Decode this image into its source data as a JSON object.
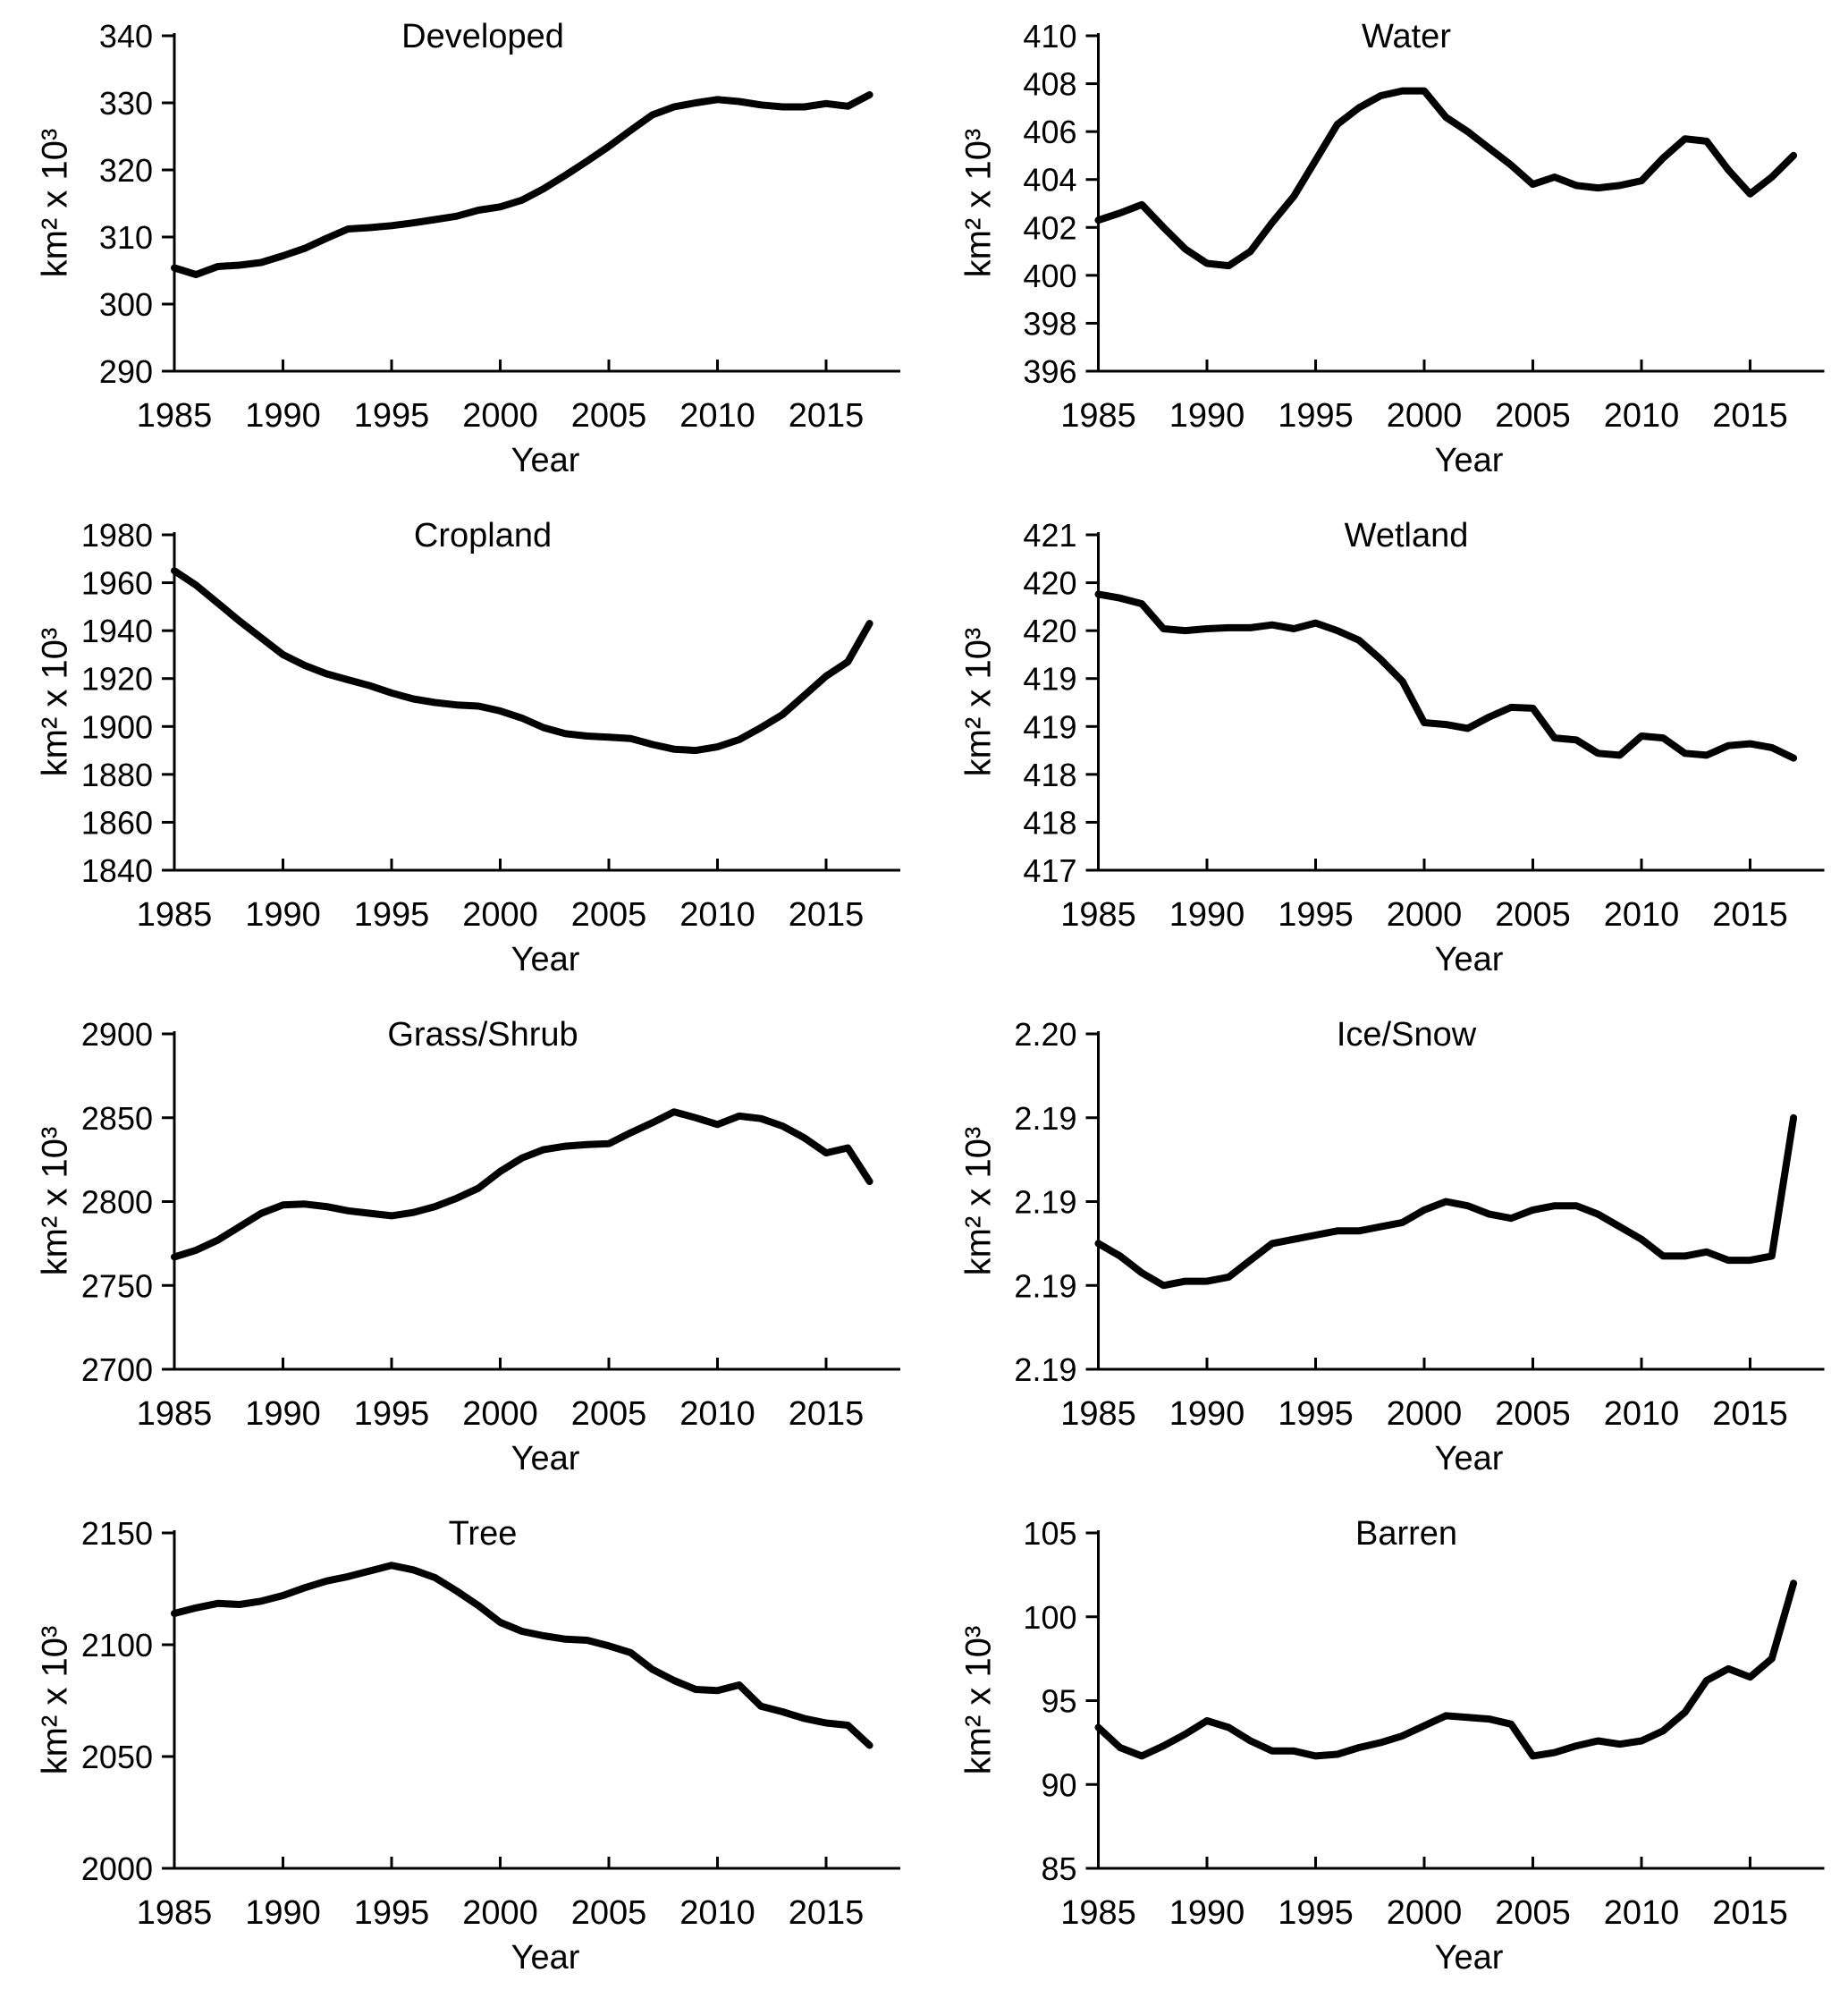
{
  "figure": {
    "background": "#ffffff",
    "axis_color": "#000000",
    "line_color": "#000000",
    "font_color": "#000000"
  },
  "chart_data": [
    {
      "type": "line",
      "title": "Developed",
      "xlabel": "Year",
      "ylabel": "km² x 10³",
      "years": [
        1985,
        1986,
        1987,
        1988,
        1989,
        1990,
        1991,
        1992,
        1993,
        1994,
        1995,
        1996,
        1997,
        1998,
        1999,
        2000,
        2001,
        2002,
        2003,
        2004,
        2005,
        2006,
        2007,
        2008,
        2009,
        2010,
        2011,
        2012,
        2013,
        2014,
        2015,
        2016,
        2017
      ],
      "values": [
        305.4,
        304.4,
        305.6,
        305.8,
        306.2,
        307.2,
        308.3,
        309.8,
        311.2,
        311.4,
        311.7,
        312.1,
        312.6,
        313.1,
        314.0,
        314.5,
        315.5,
        317.2,
        319.2,
        321.3,
        323.5,
        325.9,
        328.2,
        329.4,
        330.0,
        330.5,
        330.2,
        329.7,
        329.4,
        329.4,
        329.9,
        329.5,
        331.2
      ],
      "ylim": [
        290,
        340
      ],
      "yticks": [
        290,
        300,
        310,
        320,
        330,
        340
      ],
      "ytick_labels": [
        "290",
        "300",
        "310",
        "320",
        "330",
        "340"
      ],
      "xticks": [
        1985,
        1990,
        1995,
        2000,
        2005,
        2010,
        2015
      ],
      "xtick_marks": [
        1990,
        1995,
        2000,
        2005,
        2010,
        2015
      ],
      "grid": false,
      "legend": "none"
    },
    {
      "type": "line",
      "title": "Water",
      "xlabel": "Year",
      "ylabel": "km² x 10³",
      "years": [
        1985,
        1986,
        1987,
        1988,
        1989,
        1990,
        1991,
        1992,
        1993,
        1994,
        1995,
        1996,
        1997,
        1998,
        1999,
        2000,
        2001,
        2002,
        2003,
        2004,
        2005,
        2006,
        2007,
        2008,
        2009,
        2010,
        2011,
        2012,
        2013,
        2014,
        2015,
        2016,
        2017
      ],
      "values": [
        402.3,
        402.6,
        402.95,
        402.0,
        401.1,
        400.5,
        400.4,
        401.0,
        402.2,
        403.3,
        404.8,
        406.3,
        407.0,
        407.5,
        407.7,
        407.7,
        406.6,
        406.0,
        405.3,
        404.6,
        403.8,
        404.1,
        403.75,
        403.65,
        403.75,
        403.95,
        404.9,
        405.7,
        405.6,
        404.4,
        403.4,
        404.1,
        405.0
      ],
      "ylim": [
        396,
        410
      ],
      "yticks": [
        396,
        398,
        400,
        402,
        404,
        406,
        408,
        410
      ],
      "ytick_labels": [
        "396",
        "398",
        "400",
        "402",
        "404",
        "406",
        "408",
        "410"
      ],
      "xticks": [
        1985,
        1990,
        1995,
        2000,
        2005,
        2010,
        2015
      ],
      "xtick_marks": [
        1990,
        1995,
        2000,
        2005,
        2010,
        2015
      ],
      "grid": false,
      "legend": "none"
    },
    {
      "type": "line",
      "title": "Cropland",
      "xlabel": "Year",
      "ylabel": "km² x 10³",
      "years": [
        1985,
        1986,
        1987,
        1988,
        1989,
        1990,
        1991,
        1992,
        1993,
        1994,
        1995,
        1996,
        1997,
        1998,
        1999,
        2000,
        2001,
        2002,
        2003,
        2004,
        2005,
        2006,
        2007,
        2008,
        2009,
        2010,
        2011,
        2012,
        2013,
        2014,
        2015,
        2016,
        2017
      ],
      "values": [
        1965,
        1959,
        1951.5,
        1944,
        1937,
        1930,
        1925.5,
        1922,
        1919.5,
        1917,
        1914,
        1911.5,
        1910,
        1909,
        1908.5,
        1906.5,
        1903.5,
        1899.5,
        1897,
        1896,
        1895.5,
        1895,
        1892.5,
        1890.5,
        1890,
        1891.5,
        1894.5,
        1899.5,
        1905,
        1913,
        1921,
        1927,
        1943
      ],
      "ylim": [
        1840,
        1980
      ],
      "yticks": [
        1840,
        1860,
        1880,
        1900,
        1920,
        1940,
        1960,
        1980
      ],
      "ytick_labels": [
        "1840",
        "1860",
        "1880",
        "1900",
        "1920",
        "1940",
        "1960",
        "1980"
      ],
      "xticks": [
        1985,
        1990,
        1995,
        2000,
        2005,
        2010,
        2015
      ],
      "xtick_marks": [
        1990,
        1995,
        2000,
        2005,
        2010,
        2015
      ],
      "grid": false,
      "legend": "none"
    },
    {
      "type": "line",
      "title": "Wetland",
      "xlabel": "Year",
      "ylabel": "km² x 10³",
      "years": [
        1985,
        1986,
        1987,
        1988,
        1989,
        1990,
        1991,
        1992,
        1993,
        1994,
        1995,
        1996,
        1997,
        1998,
        1999,
        2000,
        2001,
        2002,
        2003,
        2004,
        2005,
        2006,
        2007,
        2008,
        2009,
        2010,
        2011,
        2012,
        2013,
        2014,
        2015,
        2016,
        2017
      ],
      "values": [
        419.88,
        419.84,
        419.78,
        419.52,
        419.5,
        419.52,
        419.53,
        419.53,
        419.56,
        419.52,
        419.58,
        419.5,
        419.4,
        419.2,
        418.97,
        418.54,
        418.52,
        418.48,
        418.6,
        418.7,
        418.69,
        418.38,
        418.36,
        418.22,
        418.2,
        418.4,
        418.38,
        418.22,
        418.2,
        418.3,
        418.32,
        418.28,
        418.17
      ],
      "ylim": [
        417,
        420.5
      ],
      "yticks": [
        417,
        417.5,
        418,
        418.5,
        419,
        419.5,
        420,
        420.5
      ],
      "ytick_labels": [
        "417",
        "418",
        "418",
        "419",
        "419",
        "420",
        "420",
        "421"
      ],
      "xticks": [
        1985,
        1990,
        1995,
        2000,
        2005,
        2010,
        2015
      ],
      "xtick_marks": [
        1990,
        1995,
        2000,
        2005,
        2010,
        2015
      ],
      "grid": false,
      "legend": "none"
    },
    {
      "type": "line",
      "title": "Grass/Shrub",
      "xlabel": "Year",
      "ylabel": "km² x 10³",
      "years": [
        1985,
        1986,
        1987,
        1988,
        1989,
        1990,
        1991,
        1992,
        1993,
        1994,
        1995,
        1996,
        1997,
        1998,
        1999,
        2000,
        2001,
        2002,
        2003,
        2004,
        2005,
        2006,
        2007,
        2008,
        2009,
        2010,
        2011,
        2012,
        2013,
        2014,
        2015,
        2016,
        2017
      ],
      "values": [
        2767,
        2771,
        2777,
        2785,
        2793,
        2798,
        2798.5,
        2797,
        2794.5,
        2793,
        2791.5,
        2793.5,
        2797,
        2802,
        2808,
        2818,
        2826,
        2831,
        2833,
        2834,
        2834.5,
        2841,
        2847,
        2853.5,
        2850,
        2846,
        2851,
        2849.5,
        2845,
        2838,
        2829,
        2832,
        2812
      ],
      "ylim": [
        2700,
        2900
      ],
      "yticks": [
        2700,
        2750,
        2800,
        2850,
        2900
      ],
      "ytick_labels": [
        "2700",
        "2750",
        "2800",
        "2850",
        "2900"
      ],
      "xticks": [
        1985,
        1990,
        1995,
        2000,
        2005,
        2010,
        2015
      ],
      "xtick_marks": [
        1990,
        1995,
        2000,
        2005,
        2010,
        2015
      ],
      "grid": false,
      "legend": "none"
    },
    {
      "type": "line",
      "title": "Ice/Snow",
      "xlabel": "Year",
      "ylabel": "km² x 10³",
      "years": [
        1985,
        1986,
        1987,
        1988,
        1989,
        1990,
        1991,
        1992,
        1993,
        1994,
        1995,
        1996,
        1997,
        1998,
        1999,
        2000,
        2001,
        2002,
        2003,
        2004,
        2005,
        2006,
        2007,
        2008,
        2009,
        2010,
        2011,
        2012,
        2013,
        2014,
        2015,
        2016,
        2017
      ],
      "values": [
        2.191,
        2.1907,
        2.1903,
        2.19,
        2.1901,
        2.1901,
        2.1902,
        2.1906,
        2.191,
        2.1911,
        2.1912,
        2.1913,
        2.1913,
        2.1914,
        2.1915,
        2.1918,
        2.192,
        2.1919,
        2.1917,
        2.1916,
        2.1918,
        2.1919,
        2.1919,
        2.1917,
        2.1914,
        2.1911,
        2.1907,
        2.1907,
        2.1908,
        2.1906,
        2.1906,
        2.1907,
        2.194
      ],
      "ylim": [
        2.188,
        2.196
      ],
      "yticks": [
        2.188,
        2.19,
        2.192,
        2.194,
        2.196
      ],
      "ytick_labels": [
        "2.19",
        "2.19",
        "2.19",
        "2.19",
        "2.20"
      ],
      "xticks": [
        1985,
        1990,
        1995,
        2000,
        2005,
        2010,
        2015
      ],
      "xtick_marks": [
        1990,
        1995,
        2000,
        2005,
        2010,
        2015
      ],
      "grid": false,
      "legend": "none"
    },
    {
      "type": "line",
      "title": "Tree",
      "xlabel": "Year",
      "ylabel": "km² x 10³",
      "years": [
        1985,
        1986,
        1987,
        1988,
        1989,
        1990,
        1991,
        1992,
        1993,
        1994,
        1995,
        1996,
        1997,
        1998,
        1999,
        2000,
        2001,
        2002,
        2003,
        2004,
        2005,
        2006,
        2007,
        2008,
        2009,
        2010,
        2011,
        2012,
        2013,
        2014,
        2015,
        2016,
        2017
      ],
      "values": [
        2114,
        2116.5,
        2118.5,
        2118,
        2119.5,
        2122,
        2125.5,
        2128.5,
        2130.5,
        2133,
        2135.5,
        2133.5,
        2130,
        2124,
        2117.5,
        2110,
        2106,
        2104,
        2102.5,
        2102,
        2099.5,
        2096.5,
        2089,
        2084,
        2080,
        2079.5,
        2082,
        2072.5,
        2070,
        2067,
        2065,
        2064,
        2055
      ],
      "ylim": [
        2000,
        2150
      ],
      "yticks": [
        2000,
        2050,
        2100,
        2150
      ],
      "ytick_labels": [
        "2000",
        "2050",
        "2100",
        "2150"
      ],
      "xticks": [
        1985,
        1990,
        1995,
        2000,
        2005,
        2010,
        2015
      ],
      "xtick_marks": [
        1990,
        1995,
        2000,
        2005,
        2010,
        2015
      ],
      "grid": false,
      "legend": "none"
    },
    {
      "type": "line",
      "title": "Barren",
      "xlabel": "Year",
      "ylabel": "km² x 10³",
      "years": [
        1985,
        1986,
        1987,
        1988,
        1989,
        1990,
        1991,
        1992,
        1993,
        1994,
        1995,
        1996,
        1997,
        1998,
        1999,
        2000,
        2001,
        2002,
        2003,
        2004,
        2005,
        2006,
        2007,
        2008,
        2009,
        2010,
        2011,
        2012,
        2013,
        2014,
        2015,
        2016,
        2017
      ],
      "values": [
        93.4,
        92.2,
        91.7,
        92.3,
        93.0,
        93.8,
        93.4,
        92.6,
        92.0,
        92.0,
        91.7,
        91.8,
        92.2,
        92.5,
        92.9,
        93.5,
        94.1,
        94.0,
        93.9,
        93.6,
        91.7,
        91.9,
        92.3,
        92.6,
        92.4,
        92.6,
        93.2,
        94.3,
        96.2,
        96.9,
        96.4,
        97.5,
        102.0
      ],
      "ylim": [
        85,
        105
      ],
      "yticks": [
        85,
        90,
        95,
        100,
        105
      ],
      "ytick_labels": [
        "85",
        "90",
        "95",
        "100",
        "105"
      ],
      "xticks": [
        1985,
        1990,
        1995,
        2000,
        2005,
        2010,
        2015
      ],
      "xtick_marks": [
        1990,
        1995,
        2000,
        2005,
        2010,
        2015
      ],
      "grid": false,
      "legend": "none"
    }
  ]
}
